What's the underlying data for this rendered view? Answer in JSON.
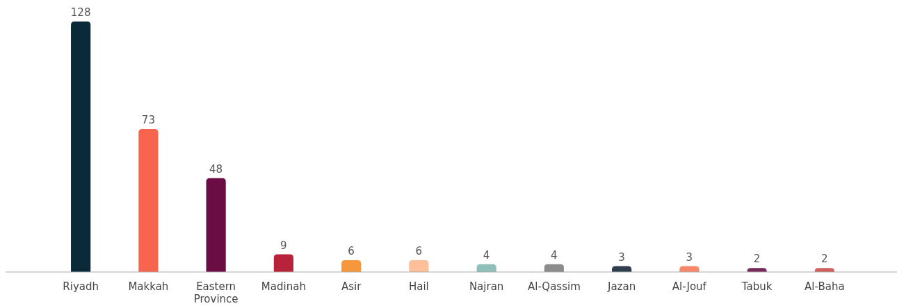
{
  "chart_data": {
    "type": "bar",
    "categories": [
      "Riyadh",
      "Makkah",
      "Eastern Province",
      "Madinah",
      "Asir",
      "Hail",
      "Najran",
      "Al-Qassim",
      "Jazan",
      "Al-Jouf",
      "Tabuk",
      "Al-Baha"
    ],
    "values": [
      128,
      73,
      48,
      9,
      6,
      6,
      4,
      4,
      3,
      3,
      2,
      2
    ],
    "colors": [
      "#0a2a3a",
      "#f7654e",
      "#6a0d45",
      "#b8223a",
      "#f7963a",
      "#fdbf9a",
      "#8fbfb8",
      "#8c8c8c",
      "#2e3e4e",
      "#f7876a",
      "#7a2a5a",
      "#d0605a"
    ],
    "data_labels": true
  }
}
